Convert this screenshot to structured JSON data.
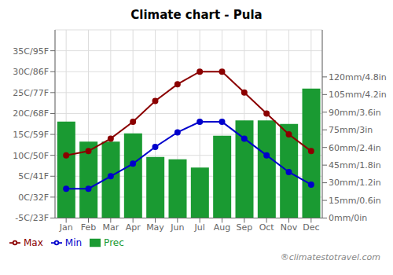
{
  "chart_data": {
    "type": "combo",
    "title": "Climate chart - Pula",
    "categories": [
      "Jan",
      "Feb",
      "Mar",
      "Apr",
      "May",
      "Jun",
      "Jul",
      "Aug",
      "Sep",
      "Oct",
      "Nov",
      "Dec"
    ],
    "series": [
      {
        "name": "Prec",
        "type": "bar",
        "axis": "y2",
        "color": "#1a9a32",
        "values": [
          82,
          65,
          65,
          72,
          52,
          50,
          43,
          70,
          83,
          83,
          80,
          110
        ]
      },
      {
        "name": "Min",
        "type": "line",
        "axis": "y",
        "color": "#0000cc",
        "marker": "circle",
        "values": [
          2,
          2,
          5,
          8,
          12,
          15.5,
          18,
          18,
          14,
          10,
          6,
          3
        ]
      },
      {
        "name": "Max",
        "type": "line",
        "axis": "y",
        "color": "#8b0000",
        "marker": "circle",
        "values": [
          10,
          11,
          14,
          18,
          23,
          27,
          30,
          30,
          25,
          20,
          15,
          11
        ]
      }
    ],
    "ylim": [
      -5,
      40
    ],
    "yticks": [
      {
        "value": -5,
        "label": "-5C/23F"
      },
      {
        "value": 0,
        "label": "0C/32F"
      },
      {
        "value": 5,
        "label": "5C/41F"
      },
      {
        "value": 10,
        "label": "10C/50F"
      },
      {
        "value": 15,
        "label": "15C/59F"
      },
      {
        "value": 20,
        "label": "20C/68F"
      },
      {
        "value": 25,
        "label": "25C/77F"
      },
      {
        "value": 30,
        "label": "30C/86F"
      },
      {
        "value": 35,
        "label": "35C/95F"
      }
    ],
    "y2lim": [
      0,
      160
    ],
    "y2ticks": [
      {
        "value": 0,
        "label": "0mm/0in"
      },
      {
        "value": 15,
        "label": "15mm/0.6in"
      },
      {
        "value": 30,
        "label": "30mm/1.2in"
      },
      {
        "value": 45,
        "label": "45mm/1.8in"
      },
      {
        "value": 60,
        "label": "60mm/2.4in"
      },
      {
        "value": 75,
        "label": "75mm/3in"
      },
      {
        "value": 90,
        "label": "90mm/3.6in"
      },
      {
        "value": 105,
        "label": "105mm/4.2in"
      },
      {
        "value": 120,
        "label": "120mm/4.8in"
      }
    ],
    "grid": true,
    "legend": "lower left",
    "annotations": [
      "®climatestotravel.com"
    ]
  }
}
